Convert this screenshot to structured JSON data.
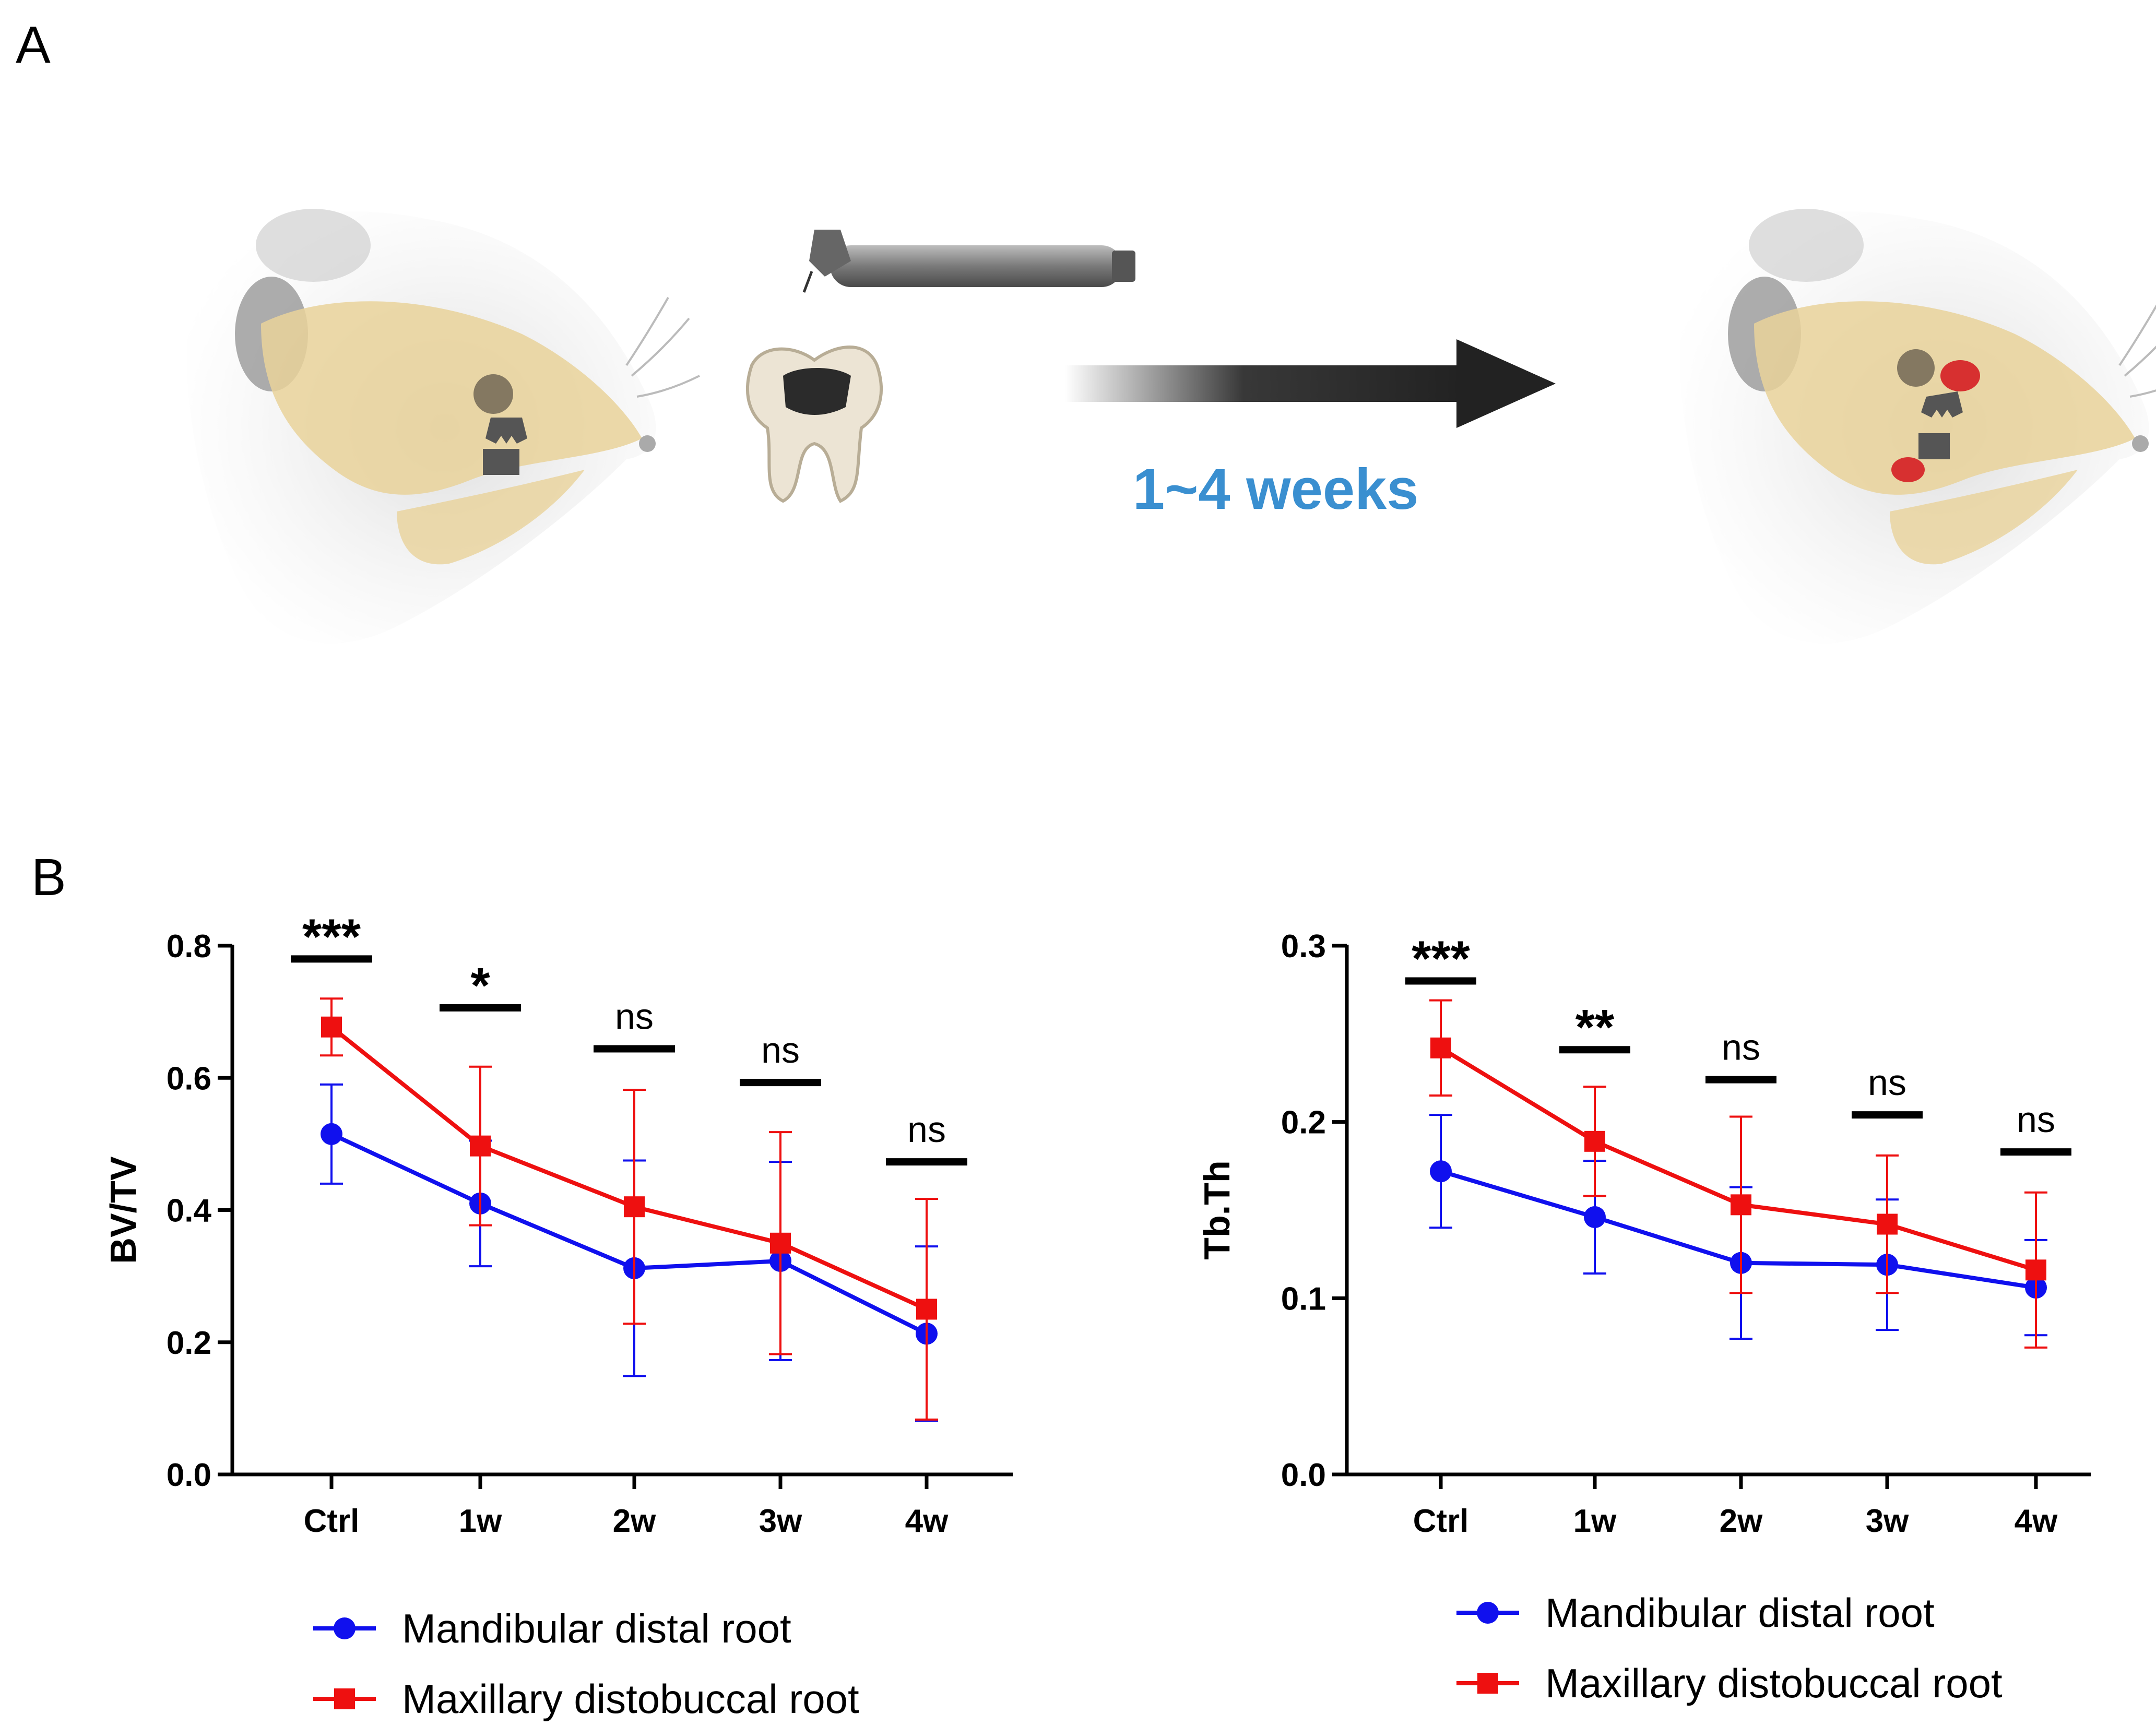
{
  "panel_a": {
    "letter": "A",
    "duration_label": "1~4 weeks"
  },
  "panel_b": {
    "letter": "B"
  },
  "colors": {
    "mandibular": "#1010ee",
    "maxillary": "#ee1010",
    "axis": "#000000",
    "weeks": "#3a8fd0"
  },
  "chart_data": [
    {
      "type": "line",
      "ylabel": "BV/TV",
      "xlabel": "",
      "categories": [
        "Ctrl",
        "1w",
        "2w",
        "3w",
        "4w"
      ],
      "ylim": [
        0,
        0.8
      ],
      "yticks": [
        "0.0",
        "0.2",
        "0.4",
        "0.6",
        "0.8"
      ],
      "series": [
        {
          "name": "Mandibular distal root",
          "marker": "circle",
          "values": [
            0.515,
            0.41,
            0.312,
            0.323,
            0.213
          ],
          "errors": [
            0.075,
            0.095,
            0.163,
            0.15,
            0.132
          ]
        },
        {
          "name": "Maxillary distobuccal root",
          "marker": "square",
          "values": [
            0.677,
            0.497,
            0.405,
            0.35,
            0.25
          ],
          "errors": [
            0.043,
            0.12,
            0.177,
            0.168,
            0.167
          ]
        }
      ],
      "significance": [
        "***",
        "*",
        "ns",
        "ns",
        "ns"
      ],
      "sig_levels": [
        0.78,
        0.706,
        0.644,
        0.593,
        0.473
      ]
    },
    {
      "type": "line",
      "ylabel": "Tb.Th",
      "xlabel": "",
      "categories": [
        "Ctrl",
        "1w",
        "2w",
        "3w",
        "4w"
      ],
      "ylim": [
        0,
        0.3
      ],
      "yticks": [
        "0.0",
        "0.1",
        "0.2",
        "0.3"
      ],
      "series": [
        {
          "name": "Mandibular distal root",
          "marker": "circle",
          "values": [
            0.172,
            0.146,
            0.12,
            0.119,
            0.106
          ],
          "errors": [
            0.032,
            0.032,
            0.043,
            0.037,
            0.027
          ]
        },
        {
          "name": "Maxillary distobuccal root",
          "marker": "square",
          "values": [
            0.242,
            0.189,
            0.153,
            0.142,
            0.116
          ],
          "errors": [
            0.027,
            0.031,
            0.05,
            0.039,
            0.044
          ]
        }
      ],
      "significance": [
        "***",
        "**",
        "ns",
        "ns",
        "ns"
      ],
      "sig_levels": [
        0.28,
        0.241,
        0.224,
        0.204,
        0.183
      ]
    }
  ]
}
